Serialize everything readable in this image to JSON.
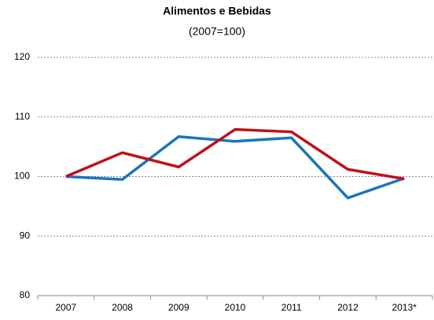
{
  "chart_data": {
    "type": "line",
    "title": "Alimentos e Bebidas",
    "subtitle": "(2007=100)",
    "categories": [
      "2007",
      "2008",
      "2009",
      "2010",
      "2011",
      "2012",
      "2013*"
    ],
    "series": [
      {
        "color": "#1a75bc",
        "values": [
          100,
          99.5,
          106.7,
          105.9,
          106.5,
          96.4,
          99.7
        ]
      },
      {
        "color": "#c0101a",
        "values": [
          100,
          104.0,
          101.6,
          107.9,
          107.5,
          101.2,
          99.6
        ]
      }
    ],
    "ylim": [
      80,
      120
    ],
    "yticks": [
      80,
      90,
      100,
      110,
      120
    ],
    "grid": true
  }
}
